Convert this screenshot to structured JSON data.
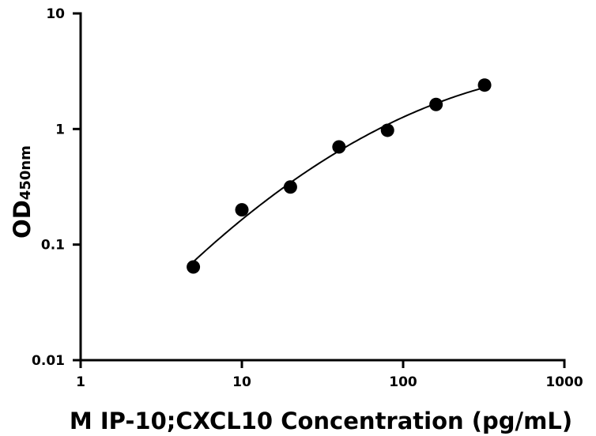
{
  "chart_data": {
    "type": "scatter",
    "xlabel": "M IP-10;CXCL10 Concentration (pg/mL)",
    "ylabel": {
      "main": "OD",
      "subscript": "450nm"
    },
    "x_scale": "log",
    "y_scale": "log",
    "xlim": [
      1,
      1000
    ],
    "ylim": [
      0.01,
      10
    ],
    "x_ticks": [
      {
        "value": 1,
        "label": "1"
      },
      {
        "value": 10,
        "label": "10"
      },
      {
        "value": 100,
        "label": "100"
      },
      {
        "value": 1000,
        "label": "1000"
      }
    ],
    "y_ticks": [
      {
        "value": 0.01,
        "label": "0.01"
      },
      {
        "value": 0.1,
        "label": "0.1"
      },
      {
        "value": 1,
        "label": "1"
      },
      {
        "value": 10,
        "label": "10"
      }
    ],
    "series": [
      {
        "x": [
          5,
          10,
          20,
          40,
          80,
          160,
          320
        ],
        "y": [
          0.064,
          0.2,
          0.315,
          0.7,
          0.975,
          1.63,
          2.4
        ]
      }
    ],
    "fit_curve": true,
    "grid": false,
    "legend": "none",
    "colors": {
      "marker": "#000000",
      "line": "#000000",
      "axis": "#000000"
    }
  }
}
